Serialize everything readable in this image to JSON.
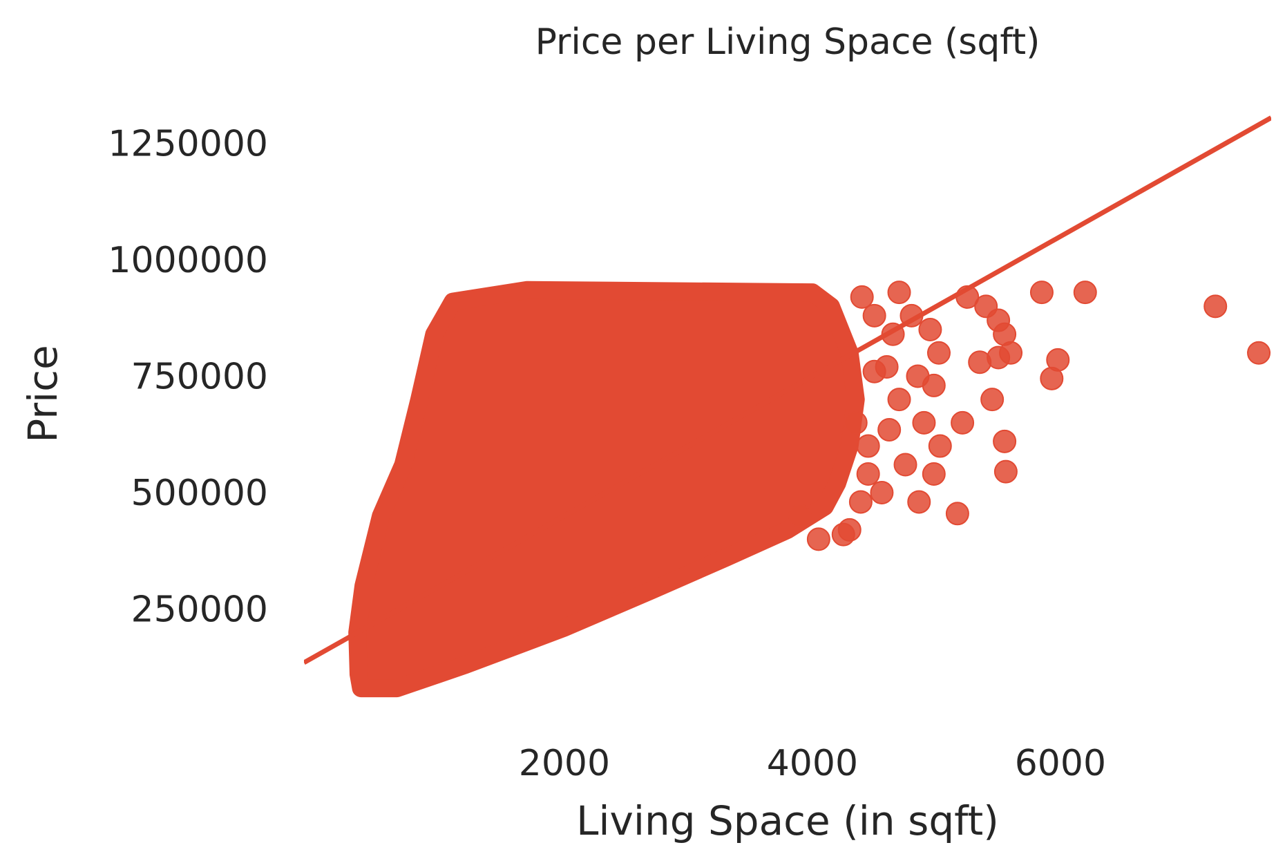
{
  "chart_data": {
    "type": "scatter",
    "title": "Price per Living Space (sqft)",
    "xlabel": "Living Space (in sqft)",
    "ylabel": "Price",
    "xlim": [
      -100,
      7700
    ],
    "ylim": [
      0,
      1350000
    ],
    "x_ticks": [
      2000,
      4000,
      6000
    ],
    "x_tick_labels": [
      "2000",
      "4000",
      "6000"
    ],
    "y_ticks": [
      250000,
      500000,
      750000,
      1000000,
      1250000
    ],
    "y_tick_labels": [
      "250000",
      "500000",
      "750000",
      "1000000",
      "1250000"
    ],
    "grid": false,
    "legend": "none",
    "colors": {
      "points": "#E24A33",
      "fit_line": "#E24A33",
      "text": "#262626"
    },
    "dense_region": {
      "description_of_shape_in_data_units": "dense point cloud",
      "polygon": [
        [
          360,
          80000
        ],
        [
          650,
          80000
        ],
        [
          1200,
          130000
        ],
        [
          2000,
          210000
        ],
        [
          2700,
          290000
        ],
        [
          3300,
          360000
        ],
        [
          3800,
          420000
        ],
        [
          4100,
          470000
        ],
        [
          4200,
          520000
        ],
        [
          4300,
          600000
        ],
        [
          4350,
          700000
        ],
        [
          4300,
          800000
        ],
        [
          4150,
          900000
        ],
        [
          4000,
          930000
        ],
        [
          1700,
          935000
        ],
        [
          1100,
          910000
        ],
        [
          950,
          840000
        ],
        [
          830,
          700000
        ],
        [
          700,
          560000
        ],
        [
          520,
          450000
        ],
        [
          380,
          300000
        ],
        [
          330,
          200000
        ],
        [
          340,
          110000
        ]
      ]
    },
    "series": [
      {
        "values": [
          [
            4700,
            930000
          ],
          [
            4800,
            880000
          ],
          [
            4950,
            850000
          ],
          [
            5250,
            920000
          ],
          [
            5400,
            900000
          ],
          [
            5500,
            870000
          ],
          [
            5550,
            840000
          ],
          [
            5600,
            800000
          ],
          [
            5500,
            790000
          ],
          [
            5350,
            780000
          ],
          [
            5850,
            930000
          ],
          [
            6200,
            930000
          ],
          [
            7250,
            900000
          ],
          [
            7600,
            800000
          ],
          [
            5980,
            785000
          ],
          [
            5930,
            745000
          ],
          [
            5020,
            800000
          ],
          [
            4980,
            730000
          ],
          [
            5450,
            700000
          ],
          [
            5550,
            610000
          ],
          [
            5560,
            545000
          ],
          [
            5210,
            650000
          ],
          [
            5030,
            600000
          ],
          [
            4980,
            540000
          ],
          [
            4860,
            480000
          ],
          [
            5170,
            455000
          ],
          [
            4750,
            560000
          ],
          [
            4620,
            635000
          ],
          [
            4450,
            600000
          ],
          [
            4560,
            500000
          ],
          [
            4390,
            480000
          ],
          [
            4300,
            420000
          ],
          [
            4050,
            400000
          ],
          [
            4700,
            700000
          ],
          [
            4850,
            750000
          ],
          [
            4600,
            770000
          ],
          [
            4900,
            650000
          ],
          [
            4650,
            840000
          ],
          [
            4500,
            880000
          ],
          [
            4400,
            920000
          ],
          [
            4250,
            410000
          ],
          [
            3900,
            450000
          ],
          [
            4450,
            540000
          ],
          [
            4350,
            650000
          ],
          [
            4500,
            760000
          ]
        ]
      }
    ],
    "regression_line": {
      "x_range": [
        -100,
        7700
      ],
      "slope": 150,
      "intercept": 150000
    }
  }
}
